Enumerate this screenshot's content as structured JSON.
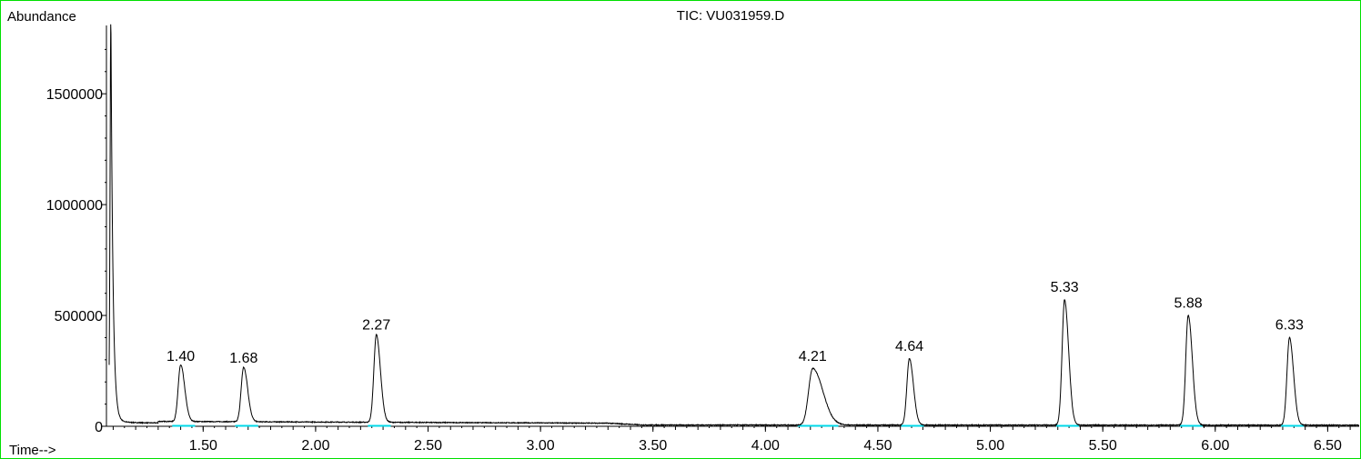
{
  "chart_data": {
    "type": "line",
    "title": "TIC: VU031959.D",
    "ylabel": "Abundance",
    "xlabel": "Time-->",
    "xlim": [
      1.07,
      6.64
    ],
    "ylim": [
      0,
      1800000
    ],
    "x_ticks": [
      1.5,
      2.0,
      2.5,
      3.0,
      3.5,
      4.0,
      4.5,
      5.0,
      5.5,
      6.0,
      6.5
    ],
    "x_tick_labels": [
      "1.50",
      "2.00",
      "2.50",
      "3.00",
      "3.50",
      "4.00",
      "4.50",
      "5.00",
      "5.50",
      "6.00",
      "6.50"
    ],
    "y_ticks": [
      0,
      500000,
      1000000,
      1500000
    ],
    "y_tick_labels": [
      "0",
      "500000",
      "1000000",
      "1500000"
    ],
    "peaks": [
      {
        "time": 1.4,
        "label": "1.40",
        "abundance": 255000
      },
      {
        "time": 1.68,
        "label": "1.68",
        "abundance": 245000
      },
      {
        "time": 2.27,
        "label": "2.27",
        "abundance": 395000
      },
      {
        "time": 4.21,
        "label": "4.21",
        "abundance": 255000
      },
      {
        "time": 4.64,
        "label": "4.64",
        "abundance": 300000
      },
      {
        "time": 5.33,
        "label": "5.33",
        "abundance": 565000
      },
      {
        "time": 5.88,
        "label": "5.88",
        "abundance": 495000
      },
      {
        "time": 6.33,
        "label": "6.33",
        "abundance": 395000
      }
    ],
    "solvent_front": {
      "time": 1.09,
      "abundance": 1820000
    },
    "colors": {
      "trace": "#000000",
      "baseline_marks": "#00d8e8",
      "frame": "#00e000"
    }
  }
}
